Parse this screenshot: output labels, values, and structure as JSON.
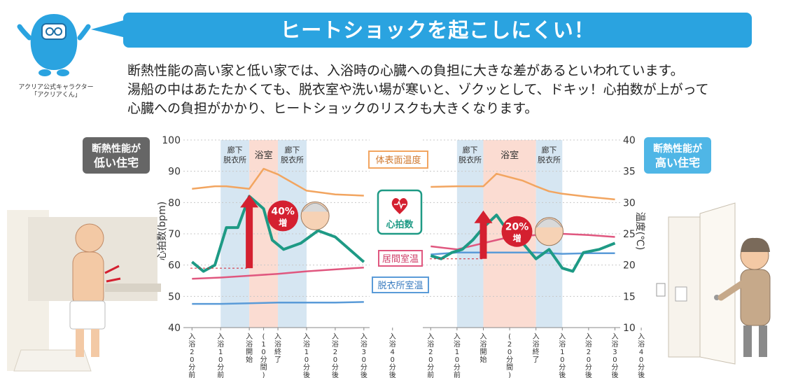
{
  "header": {
    "title": "ヒートショックを起こしにくい！",
    "mascot_caption": [
      "アクリア公式キャラクター",
      "「アクリアくん」"
    ],
    "intro_lines": [
      "断熱性能の高い家と低い家では、入浴時の心臓への負担に大きな差があるといわれています。",
      "湯船の中はあたたかくても、脱衣室や洗い場が寒いと、ゾクッとして、ドキッ！心拍数が上がって",
      "心臓への負担がかかり、ヒートショックのリスクも大きくなります。"
    ]
  },
  "labels": {
    "low_house": [
      "断熱性能が",
      "低い住宅"
    ],
    "high_house": [
      "断熱性能が",
      "高い住宅"
    ],
    "body_temp": "体表面温度",
    "heart_rate": "心拍数",
    "living_temp": "居間室温",
    "dressing_temp": "脱衣所室温",
    "y_left_label": "心拍数(bpm)",
    "y_right_label": "温度(℃)",
    "increase_low": [
      "40%",
      "増"
    ],
    "increase_high": [
      "20%",
      "増"
    ]
  },
  "colors": {
    "title_bg": "#2aa3e0",
    "heart_rate": "#1e9a85",
    "body_temp": "#f2a560",
    "living_temp": "#e0577f",
    "dressing_temp": "#5a9bd8",
    "bath_band": "#fbdcd2",
    "hall_band": "#d6e6f2",
    "arrow": "#d42030",
    "low_badge": "#666666",
    "high_badge": "#4fb6e6"
  },
  "chart_data": [
    {
      "type": "line",
      "title": "断熱性能が低い住宅",
      "x": [
        "入浴20分前",
        "入浴10分前",
        "入浴開始",
        "(10分間)",
        "入浴終了",
        "入浴10分後",
        "入浴20分後",
        "入浴30分後",
        "入浴40分後"
      ],
      "x_tick_labels": [
        [
          "入",
          "浴",
          "2",
          "0",
          "分",
          "前"
        ],
        [
          "入",
          "浴",
          "1",
          "0",
          "分",
          "前"
        ],
        [
          "入",
          "浴",
          "開",
          "始"
        ],
        [
          "(",
          "1",
          "0",
          "分",
          "間",
          ")"
        ],
        [
          "入",
          "浴",
          "終",
          "了"
        ],
        [
          "入",
          "浴",
          "1",
          "0",
          "分",
          "後"
        ],
        [
          "入",
          "浴",
          "2",
          "0",
          "分",
          "後"
        ],
        [
          "入",
          "浴",
          "3",
          "0",
          "分",
          "後"
        ],
        [
          "入",
          "浴",
          "4",
          "0",
          "分",
          "後"
        ]
      ],
      "x_range": [
        -23,
        42
      ],
      "ylabel": "心拍数(bpm)",
      "ylim": [
        40,
        100
      ],
      "y_ticks": [
        40,
        50,
        60,
        70,
        80,
        90,
        100
      ],
      "ylabel_right": "温度(℃)",
      "ylim_right": [
        10,
        40
      ],
      "y_ticks_right": [
        10,
        15,
        20,
        25,
        30,
        35,
        40
      ],
      "bands": [
        {
          "label": [
            "廊下",
            "脱衣所"
          ],
          "kind": "hall",
          "from": -10,
          "to": 0
        },
        {
          "label": [
            "浴室"
          ],
          "kind": "bath",
          "from": 0,
          "to": 10
        },
        {
          "label": [
            "廊下",
            "脱衣所"
          ],
          "kind": "hall",
          "from": 10,
          "to": 20
        }
      ],
      "series": [
        {
          "name": "体表面温度",
          "axis": "right",
          "color": "#f2a560",
          "x": [
            -20,
            -12,
            -8,
            0,
            5,
            10,
            20,
            30,
            40
          ],
          "values": [
            32.2,
            32.6,
            32.6,
            32.2,
            35.4,
            34.5,
            31.9,
            31.3,
            31.1
          ]
        },
        {
          "name": "心拍数",
          "axis": "left",
          "color": "#1e9a85",
          "x": [
            -20,
            -16,
            -12,
            -8,
            -4,
            0,
            5,
            8,
            12,
            18,
            24,
            30,
            40
          ],
          "values": [
            61,
            58,
            60,
            72,
            72,
            82,
            78,
            68,
            65,
            67,
            71,
            69,
            61
          ]
        },
        {
          "name": "居間室温",
          "axis": "right",
          "color": "#e0577f",
          "x": [
            -20,
            -10,
            0,
            10,
            20,
            30,
            40
          ],
          "values": [
            17.8,
            18.0,
            18.3,
            18.6,
            19.0,
            19.3,
            19.6
          ]
        },
        {
          "name": "脱衣所室温",
          "axis": "right",
          "color": "#5a9bd8",
          "x": [
            -20,
            -10,
            0,
            10,
            20,
            30,
            40
          ],
          "values": [
            13.8,
            13.8,
            13.9,
            14.0,
            14.0,
            14.0,
            14.1
          ]
        }
      ],
      "annotation": {
        "text": [
          "40%",
          "増"
        ],
        "from": 59,
        "to": 82,
        "at_x": 0
      }
    },
    {
      "type": "line",
      "title": "断熱性能が高い住宅",
      "x": [
        "入浴20分前",
        "入浴10分前",
        "入浴開始",
        "(20分間)",
        "入浴終了",
        "入浴10分後",
        "入浴20分後",
        "入浴30分後",
        "入浴40分後"
      ],
      "x_tick_labels": [
        [
          "入",
          "浴",
          "2",
          "0",
          "分",
          "前"
        ],
        [
          "入",
          "浴",
          "1",
          "0",
          "分",
          "前"
        ],
        [
          "入",
          "浴",
          "開",
          "始"
        ],
        [
          "(",
          "2",
          "0",
          "分",
          "間",
          ")"
        ],
        [
          "入",
          "浴",
          "終",
          "了"
        ],
        [
          "入",
          "浴",
          "1",
          "0",
          "分",
          "後"
        ],
        [
          "入",
          "浴",
          "2",
          "0",
          "分",
          "後"
        ],
        [
          "入",
          "浴",
          "3",
          "0",
          "分",
          "後"
        ],
        [
          "入",
          "浴",
          "4",
          "0",
          "分",
          "後"
        ]
      ],
      "x_range": [
        -23,
        52
      ],
      "ylabel": "心拍数(bpm)",
      "ylim": [
        40,
        100
      ],
      "y_ticks": [
        40,
        50,
        60,
        70,
        80,
        90,
        100
      ],
      "ylabel_right": "温度(℃)",
      "ylim_right": [
        10,
        40
      ],
      "y_ticks_right": [
        10,
        15,
        20,
        25,
        30,
        35,
        40
      ],
      "bands": [
        {
          "label": [
            "廊下",
            "脱衣所"
          ],
          "kind": "hall",
          "from": -10,
          "to": 0
        },
        {
          "label": [
            "浴室"
          ],
          "kind": "bath",
          "from": 0,
          "to": 20
        },
        {
          "label": [
            "廊下",
            "脱衣所"
          ],
          "kind": "hall",
          "from": 20,
          "to": 30
        }
      ],
      "series": [
        {
          "name": "体表面温度",
          "axis": "right",
          "color": "#f2a560",
          "x": [
            -20,
            -10,
            0,
            5,
            15,
            20,
            25,
            30,
            40,
            50
          ],
          "values": [
            32.5,
            32.6,
            32.6,
            34.6,
            33.5,
            32.6,
            31.8,
            31.4,
            30.9,
            30.5
          ]
        },
        {
          "name": "心拍数",
          "axis": "left",
          "color": "#1e9a85",
          "x": [
            -20,
            -16,
            -12,
            -8,
            -4,
            0,
            5,
            10,
            15,
            20,
            25,
            30,
            34,
            38,
            44,
            50
          ],
          "values": [
            63,
            62,
            64,
            65,
            68,
            72,
            76,
            70,
            67,
            62,
            65,
            59,
            58,
            64,
            65,
            67
          ]
        },
        {
          "name": "居間室温",
          "axis": "right",
          "color": "#e0577f",
          "x": [
            -20,
            -10,
            0,
            10,
            20,
            30,
            40,
            50
          ],
          "values": [
            23.0,
            22.5,
            23.5,
            24.5,
            24.8,
            25.0,
            24.8,
            24.5
          ]
        },
        {
          "name": "脱衣所室温",
          "axis": "right",
          "color": "#5a9bd8",
          "x": [
            -20,
            -10,
            0,
            10,
            20,
            30,
            40,
            50
          ],
          "values": [
            21.7,
            22.0,
            22.0,
            22.0,
            22.0,
            21.8,
            21.9,
            21.9
          ]
        }
      ],
      "annotation": {
        "text": [
          "20%",
          "増"
        ],
        "from": 62,
        "to": 77,
        "at_x": 0
      }
    }
  ]
}
